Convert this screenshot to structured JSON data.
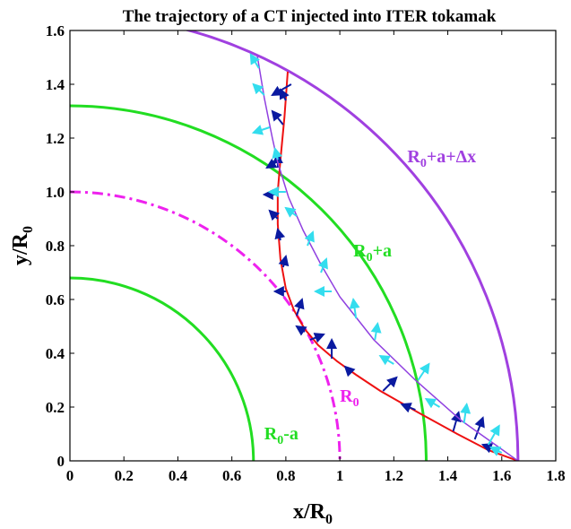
{
  "chart_data": {
    "type": "line",
    "title": "The trajectory of a CT injected into ITER tokamak",
    "xlabel": "x/R0",
    "ylabel": "y/R0",
    "xlim": [
      0,
      1.8
    ],
    "ylim": [
      0,
      1.6
    ],
    "xticks": [
      "0",
      "0.2",
      "0.4",
      "0.6",
      "0.8",
      "1",
      "1.2",
      "1.4",
      "1.6",
      "1.8"
    ],
    "yticks": [
      "0",
      "0.2",
      "0.4",
      "0.6",
      "0.8",
      "1.0",
      "1.2",
      "1.4",
      "1.6"
    ],
    "circles": [
      {
        "name": "R0-a",
        "r": 0.68,
        "color": "#22dd22",
        "style": "solid",
        "label": "R0-a",
        "label_at": [
          0.72,
          0.08
        ]
      },
      {
        "name": "R0",
        "r": 1.0,
        "color": "#ee22ee",
        "style": "dashdot",
        "label": "R0",
        "label_at": [
          1.0,
          0.22
        ]
      },
      {
        "name": "R0+a",
        "r": 1.32,
        "color": "#22dd22",
        "style": "solid",
        "label": "R0+a",
        "label_at": [
          1.05,
          0.76
        ]
      },
      {
        "name": "R0+a+Δx",
        "r": 1.66,
        "color": "#a040e0",
        "style": "solid",
        "label": "R0+a+Δx",
        "label_at": [
          1.25,
          1.11
        ]
      }
    ],
    "series": [
      {
        "name": "trajectory",
        "color": "#ee1111",
        "points": [
          [
            1.66,
            0
          ],
          [
            1.55,
            0.04
          ],
          [
            1.435,
            0.1
          ],
          [
            1.29,
            0.18
          ],
          [
            1.15,
            0.26
          ],
          [
            1.06,
            0.32
          ],
          [
            0.99,
            0.37
          ],
          [
            0.92,
            0.43
          ],
          [
            0.87,
            0.49
          ],
          [
            0.83,
            0.56
          ],
          [
            0.8,
            0.64
          ],
          [
            0.78,
            0.75
          ],
          [
            0.77,
            0.88
          ],
          [
            0.77,
            1.0
          ],
          [
            0.78,
            1.12
          ],
          [
            0.795,
            1.28
          ],
          [
            0.807,
            1.447
          ]
        ],
        "arrow_color": "#0a1aa0",
        "arrows": [
          [
            1.58,
            0.04,
            -0.05,
            0.02
          ],
          [
            1.5,
            0.08,
            0.03,
            0.08
          ],
          [
            1.42,
            0.11,
            0.02,
            0.07
          ],
          [
            1.28,
            0.19,
            -0.05,
            0.02
          ],
          [
            1.16,
            0.26,
            0.05,
            0.05
          ],
          [
            1.04,
            0.33,
            -0.02,
            0.02
          ],
          [
            0.97,
            0.38,
            0.0,
            0.07
          ],
          [
            0.89,
            0.45,
            0.05,
            0.02
          ],
          [
            0.87,
            0.48,
            -0.03,
            0.02
          ],
          [
            0.84,
            0.54,
            0.02,
            0.06
          ],
          [
            0.8,
            0.63,
            -0.04,
            0.0
          ],
          [
            0.79,
            0.72,
            0.01,
            0.04
          ],
          [
            0.78,
            0.82,
            -0.01,
            0.04
          ],
          [
            0.77,
            0.9,
            -0.03,
            0.03
          ],
          [
            0.77,
            0.99,
            -0.05,
            0.0
          ],
          [
            0.77,
            1.09,
            0.0,
            0.05
          ],
          [
            0.78,
            1.12,
            -0.05,
            -0.03
          ],
          [
            0.79,
            1.25,
            -0.04,
            0.05
          ],
          [
            0.8,
            1.34,
            -0.02,
            0.04
          ],
          [
            0.82,
            1.4,
            -0.07,
            -0.04
          ]
        ]
      },
      {
        "name": "reference",
        "color": "#9040e0",
        "points": [
          [
            0.694,
            1.507
          ],
          [
            0.72,
            1.35
          ],
          [
            0.75,
            1.2
          ],
          [
            0.77,
            1.11
          ],
          [
            0.81,
            0.98
          ],
          [
            0.864,
            0.857
          ],
          [
            0.93,
            0.73
          ],
          [
            1.0,
            0.61
          ],
          [
            1.126,
            0.45
          ],
          [
            1.28,
            0.3
          ],
          [
            1.45,
            0.15
          ],
          [
            1.66,
            0
          ]
        ],
        "arrow_color": "#33ddee",
        "arrows": [
          [
            1.6,
            0.03,
            -0.04,
            0.02
          ],
          [
            1.55,
            0.06,
            0.04,
            0.07
          ],
          [
            1.46,
            0.14,
            0.01,
            0.07
          ],
          [
            1.37,
            0.2,
            -0.05,
            0.03
          ],
          [
            1.29,
            0.3,
            0.04,
            0.06
          ],
          [
            1.2,
            0.36,
            -0.05,
            0.03
          ],
          [
            1.13,
            0.45,
            0.01,
            0.06
          ],
          [
            1.06,
            0.53,
            -0.01,
            0.07
          ],
          [
            0.97,
            0.63,
            -0.06,
            0.0
          ],
          [
            0.93,
            0.7,
            0.02,
            0.05
          ],
          [
            0.88,
            0.8,
            0.02,
            0.05
          ],
          [
            0.84,
            0.91,
            -0.04,
            0.03
          ],
          [
            0.8,
            1.0,
            -0.06,
            0.0
          ],
          [
            0.77,
            1.12,
            -0.01,
            0.04
          ],
          [
            0.74,
            1.24,
            -0.06,
            -0.02
          ],
          [
            0.72,
            1.36,
            -0.04,
            0.04
          ],
          [
            0.7,
            1.46,
            -0.03,
            0.05
          ]
        ]
      }
    ]
  }
}
